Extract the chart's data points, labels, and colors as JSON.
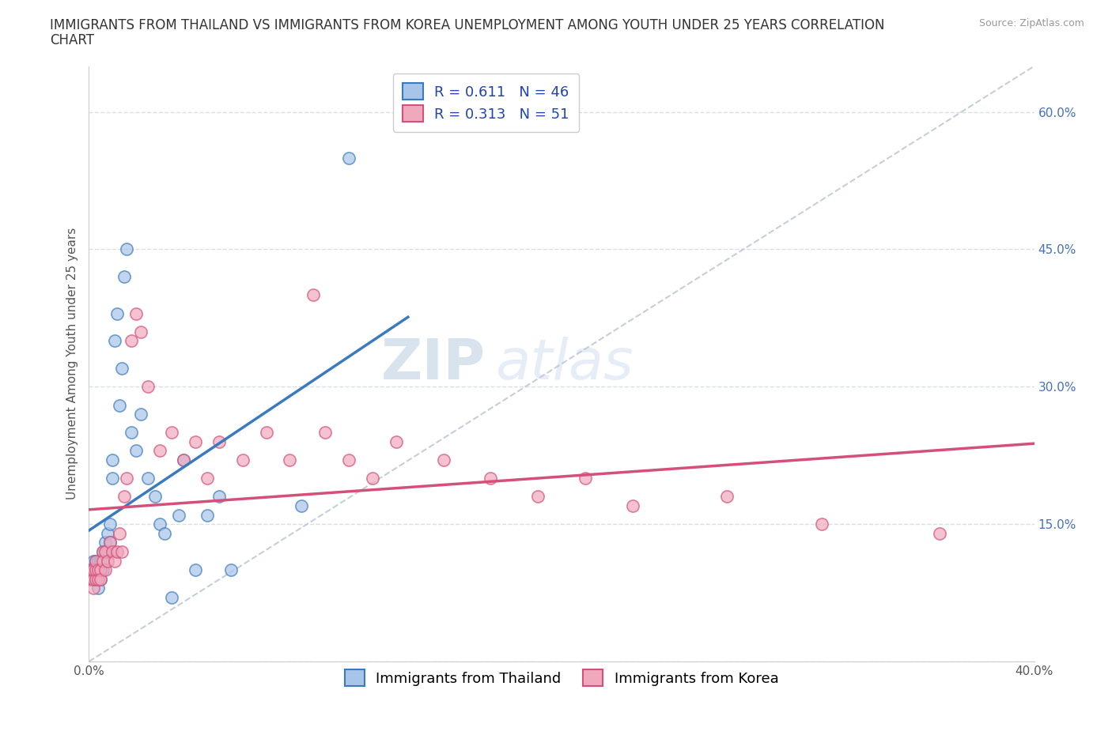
{
  "title_line1": "IMMIGRANTS FROM THAILAND VS IMMIGRANTS FROM KOREA UNEMPLOYMENT AMONG YOUTH UNDER 25 YEARS CORRELATION",
  "title_line2": "CHART",
  "source": "Source: ZipAtlas.com",
  "ylabel": "Unemployment Among Youth under 25 years",
  "xmin": 0.0,
  "xmax": 0.4,
  "ymin": 0.0,
  "ymax": 0.65,
  "right_yticks": [
    0.6,
    0.45,
    0.3,
    0.15
  ],
  "right_yticklabels": [
    "60.0%",
    "45.0%",
    "30.0%",
    "15.0%"
  ],
  "thailand_R": "0.611",
  "thailand_N": "46",
  "korea_R": "0.313",
  "korea_N": "51",
  "thailand_color": "#a8c4e8",
  "korea_color": "#f0a8bc",
  "thailand_line_color": "#3a7bbf",
  "korea_line_color": "#d4507a",
  "ref_line_color": "#c0c8d8",
  "watermark_color": "#c8d8ec",
  "grid_color": "#d8dde8",
  "thailand_x": [
    0.001,
    0.001,
    0.002,
    0.002,
    0.002,
    0.003,
    0.003,
    0.003,
    0.004,
    0.004,
    0.004,
    0.005,
    0.005,
    0.005,
    0.006,
    0.006,
    0.007,
    0.007,
    0.008,
    0.008,
    0.009,
    0.009,
    0.01,
    0.01,
    0.011,
    0.012,
    0.013,
    0.014,
    0.015,
    0.016,
    0.018,
    0.02,
    0.022,
    0.025,
    0.028,
    0.03,
    0.032,
    0.035,
    0.038,
    0.04,
    0.045,
    0.05,
    0.055,
    0.06,
    0.09,
    0.11
  ],
  "thailand_y": [
    0.09,
    0.1,
    0.09,
    0.1,
    0.11,
    0.1,
    0.11,
    0.09,
    0.11,
    0.1,
    0.08,
    0.1,
    0.11,
    0.09,
    0.12,
    0.1,
    0.13,
    0.12,
    0.12,
    0.14,
    0.13,
    0.15,
    0.22,
    0.2,
    0.35,
    0.38,
    0.28,
    0.32,
    0.42,
    0.45,
    0.25,
    0.23,
    0.27,
    0.2,
    0.18,
    0.15,
    0.14,
    0.07,
    0.16,
    0.22,
    0.1,
    0.16,
    0.18,
    0.1,
    0.17,
    0.55
  ],
  "korea_x": [
    0.001,
    0.001,
    0.002,
    0.002,
    0.002,
    0.003,
    0.003,
    0.003,
    0.004,
    0.004,
    0.005,
    0.005,
    0.006,
    0.006,
    0.007,
    0.007,
    0.008,
    0.009,
    0.01,
    0.011,
    0.012,
    0.013,
    0.014,
    0.015,
    0.016,
    0.018,
    0.02,
    0.022,
    0.025,
    0.03,
    0.035,
    0.04,
    0.045,
    0.05,
    0.055,
    0.065,
    0.075,
    0.085,
    0.095,
    0.1,
    0.11,
    0.12,
    0.13,
    0.15,
    0.17,
    0.19,
    0.21,
    0.23,
    0.27,
    0.31,
    0.36
  ],
  "korea_y": [
    0.09,
    0.1,
    0.08,
    0.09,
    0.1,
    0.09,
    0.1,
    0.11,
    0.09,
    0.1,
    0.1,
    0.09,
    0.12,
    0.11,
    0.1,
    0.12,
    0.11,
    0.13,
    0.12,
    0.11,
    0.12,
    0.14,
    0.12,
    0.18,
    0.2,
    0.35,
    0.38,
    0.36,
    0.3,
    0.23,
    0.25,
    0.22,
    0.24,
    0.2,
    0.24,
    0.22,
    0.25,
    0.22,
    0.4,
    0.25,
    0.22,
    0.2,
    0.24,
    0.22,
    0.2,
    0.18,
    0.2,
    0.17,
    0.18,
    0.15,
    0.14
  ],
  "background_color": "#ffffff",
  "legend_fontsize": 13,
  "title_fontsize": 12,
  "axis_label_fontsize": 11,
  "tick_fontsize": 11,
  "marker_size": 120
}
